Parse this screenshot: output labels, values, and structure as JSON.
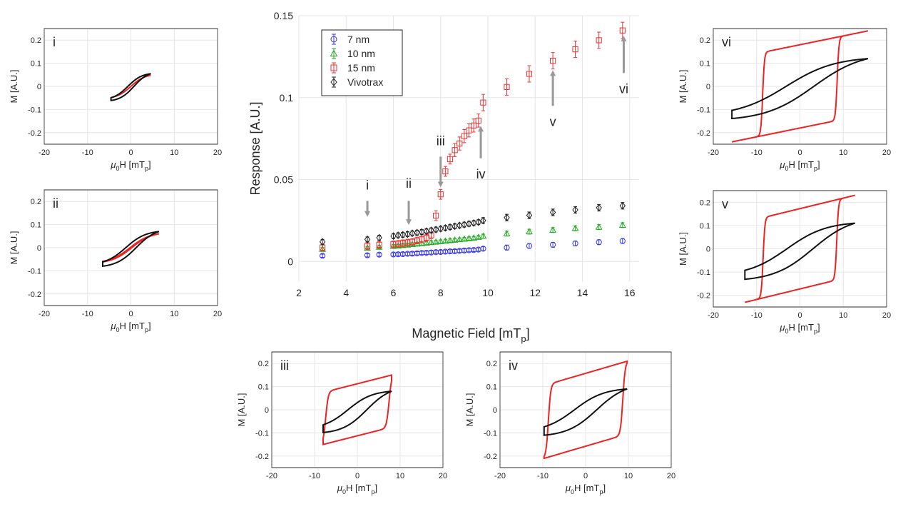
{
  "main": {
    "type": "scatter",
    "xlabel": "Magnetic Field [mT",
    "xlabel_sub": "p",
    "xlabel_end": "]",
    "ylabel": "Response [A.U.]",
    "xlim": [
      2,
      16.4
    ],
    "ylim": [
      -0.0125,
      0.15
    ],
    "xticks": [
      2,
      4,
      6,
      8,
      10,
      12,
      14,
      16
    ],
    "yticks": [
      0,
      0.05,
      0.1,
      0.15
    ],
    "ytick_labels": [
      "0",
      "0.05",
      "0.1",
      "0.15"
    ],
    "legend": {
      "position": "top-left",
      "entries": [
        "7 nm",
        "10 nm",
        "15 nm",
        "Vivotrax"
      ]
    },
    "series": [
      {
        "name": "7 nm",
        "color": "#3333ee",
        "marker": "circle",
        "x": [
          3.0,
          4.9,
          5.4,
          6.0,
          6.2,
          6.4,
          6.6,
          6.8,
          7.0,
          7.2,
          7.4,
          7.6,
          7.8,
          8.0,
          8.2,
          8.4,
          8.6,
          8.8,
          9.0,
          9.2,
          9.4,
          9.6,
          9.8,
          10.8,
          11.75,
          12.75,
          13.7,
          14.7,
          15.7
        ],
        "y": [
          0.0035,
          0.0038,
          0.0042,
          0.0043,
          0.0044,
          0.0045,
          0.0047,
          0.0048,
          0.005,
          0.0052,
          0.0053,
          0.0055,
          0.0057,
          0.0058,
          0.006,
          0.0062,
          0.0063,
          0.0065,
          0.0067,
          0.0069,
          0.007,
          0.0073,
          0.0078,
          0.0085,
          0.0095,
          0.0102,
          0.011,
          0.0118,
          0.0125
        ],
        "err": [
          0.001,
          0.001,
          0.001,
          0.001,
          0.001,
          0.001,
          0.001,
          0.001,
          0.001,
          0.001,
          0.001,
          0.001,
          0.001,
          0.001,
          0.001,
          0.001,
          0.001,
          0.001,
          0.001,
          0.001,
          0.001,
          0.001,
          0.0012,
          0.0015,
          0.0015,
          0.0015,
          0.0015,
          0.0015,
          0.0015
        ]
      },
      {
        "name": "10 nm",
        "color": "#22aa22",
        "marker": "triangle",
        "x": [
          3.0,
          4.9,
          5.4,
          6.0,
          6.2,
          6.4,
          6.6,
          6.8,
          7.0,
          7.2,
          7.4,
          7.6,
          7.8,
          8.0,
          8.2,
          8.4,
          8.6,
          8.8,
          9.0,
          9.2,
          9.4,
          9.6,
          9.8,
          10.8,
          11.75,
          12.75,
          13.7,
          14.7,
          15.7
        ],
        "y": [
          0.0075,
          0.0082,
          0.0088,
          0.0093,
          0.0095,
          0.0098,
          0.0101,
          0.0104,
          0.0107,
          0.011,
          0.0113,
          0.0116,
          0.0119,
          0.0122,
          0.0125,
          0.0128,
          0.0131,
          0.0134,
          0.0137,
          0.014,
          0.0143,
          0.0148,
          0.0155,
          0.017,
          0.0182,
          0.0192,
          0.0202,
          0.021,
          0.0222
        ],
        "err": [
          0.001,
          0.001,
          0.001,
          0.001,
          0.001,
          0.001,
          0.001,
          0.001,
          0.001,
          0.001,
          0.001,
          0.001,
          0.001,
          0.001,
          0.001,
          0.001,
          0.001,
          0.001,
          0.001,
          0.001,
          0.001,
          0.001,
          0.0012,
          0.0015,
          0.0015,
          0.0015,
          0.0015,
          0.0015,
          0.0015
        ]
      },
      {
        "name": "15 nm",
        "color": "#ee3333",
        "marker": "square",
        "x": [
          3.0,
          4.9,
          5.4,
          6.0,
          6.2,
          6.4,
          6.6,
          6.8,
          7.0,
          7.2,
          7.4,
          7.6,
          7.8,
          8.0,
          8.2,
          8.4,
          8.6,
          8.8,
          9.0,
          9.2,
          9.4,
          9.6,
          9.8,
          10.8,
          11.75,
          12.75,
          13.7,
          14.7,
          15.7
        ],
        "y": [
          0.0085,
          0.0095,
          0.0102,
          0.0105,
          0.0108,
          0.0112,
          0.0116,
          0.012,
          0.0128,
          0.0135,
          0.0145,
          0.016,
          0.028,
          0.041,
          0.055,
          0.0625,
          0.068,
          0.072,
          0.0765,
          0.08,
          0.083,
          0.086,
          0.097,
          0.1065,
          0.1145,
          0.1225,
          0.1295,
          0.135,
          0.141
        ],
        "err": [
          0.002,
          0.002,
          0.002,
          0.002,
          0.002,
          0.002,
          0.002,
          0.002,
          0.002,
          0.002,
          0.002,
          0.002,
          0.003,
          0.003,
          0.003,
          0.003,
          0.004,
          0.004,
          0.004,
          0.004,
          0.004,
          0.004,
          0.005,
          0.005,
          0.005,
          0.005,
          0.005,
          0.005,
          0.005
        ]
      },
      {
        "name": "Vivotrax",
        "color": "#222222",
        "marker": "diamond",
        "x": [
          3.0,
          4.9,
          5.4,
          6.0,
          6.2,
          6.4,
          6.6,
          6.8,
          7.0,
          7.2,
          7.4,
          7.6,
          7.8,
          8.0,
          8.2,
          8.4,
          8.6,
          8.8,
          9.0,
          9.2,
          9.4,
          9.6,
          9.8,
          10.8,
          11.75,
          12.75,
          13.7,
          14.7,
          15.7
        ],
        "y": [
          0.012,
          0.0135,
          0.0145,
          0.0155,
          0.016,
          0.0163,
          0.0167,
          0.0172,
          0.0176,
          0.018,
          0.0185,
          0.019,
          0.0195,
          0.02,
          0.0205,
          0.021,
          0.0215,
          0.022,
          0.0225,
          0.023,
          0.0235,
          0.024,
          0.025,
          0.0268,
          0.0282,
          0.03,
          0.0315,
          0.0328,
          0.034
        ],
        "err": [
          0.0015,
          0.0015,
          0.0015,
          0.0015,
          0.0015,
          0.0015,
          0.0015,
          0.0015,
          0.0015,
          0.0015,
          0.0015,
          0.0015,
          0.0015,
          0.0015,
          0.0015,
          0.0015,
          0.0015,
          0.0015,
          0.0015,
          0.0015,
          0.0015,
          0.0015,
          0.0018,
          0.002,
          0.002,
          0.002,
          0.002,
          0.002,
          0.002
        ]
      }
    ],
    "arrows": [
      {
        "label": "i",
        "x": 4.9,
        "y_tip": 0.029,
        "y_tail": 0.037,
        "label_y": 0.044,
        "label_side": "above"
      },
      {
        "label": "ii",
        "x": 6.65,
        "y_tip": 0.024,
        "y_tail": 0.037,
        "label_y": 0.045,
        "label_side": "above"
      },
      {
        "label": "iii",
        "x": 8.0,
        "y_tip": 0.047,
        "y_tail": 0.064,
        "label_y": 0.071,
        "label_side": "above"
      },
      {
        "label": "iv",
        "x": 9.7,
        "y_tip": 0.081,
        "y_tail": 0.063,
        "label_y": 0.056,
        "label_side": "below"
      },
      {
        "label": "v",
        "x": 12.75,
        "y_tip": 0.115,
        "y_tail": 0.095,
        "label_y": 0.088,
        "label_side": "below"
      },
      {
        "label": "vi",
        "x": 15.75,
        "y_tip": 0.136,
        "y_tail": 0.115,
        "label_y": 0.108,
        "label_side": "below"
      }
    ]
  },
  "hysteresis": {
    "xlabel_mu": "μ",
    "xlabel_sub0": "0",
    "xlabel_mid": "H [mT",
    "xlabel_sub": "p",
    "xlabel_end": "]",
    "ylabel": "M [A.U.]",
    "xlim": [
      -20,
      20
    ],
    "ylim": [
      -0.25,
      0.25
    ],
    "xticks": [
      -20,
      -10,
      0,
      10,
      20
    ],
    "xtick_labels": [
      "-20",
      "-10",
      "0",
      "10",
      "20"
    ],
    "yticks": [
      -0.2,
      -0.1,
      0,
      0.1,
      0.2
    ],
    "ytick_labels": [
      "-0.2",
      "-0.1",
      "0",
      "0.1",
      "0.2"
    ],
    "panels": [
      {
        "label": "i",
        "black": {
          "hmax": 4.6,
          "mmax": 0.055,
          "coercive": 0.7,
          "alpha": 4.0,
          "sat_mode": "tanh"
        },
        "red": {
          "hmax": 4.6,
          "mmax": 0.048,
          "coercive": 0.0,
          "alpha": 5.0,
          "sat_mode": "tanh"
        }
      },
      {
        "label": "ii",
        "black": {
          "hmax": 6.5,
          "mmax": 0.07,
          "coercive": 1.2,
          "alpha": 5.0,
          "sat_mode": "tanh"
        },
        "red": {
          "hmax": 6.5,
          "mmax": 0.06,
          "coercive": 0.2,
          "alpha": 6.0,
          "sat_mode": "tanh"
        }
      },
      {
        "label": "iii",
        "black": {
          "hmax": 8.0,
          "mmax": 0.08,
          "coercive": 2.2,
          "alpha": 5.5,
          "sat_mode": "tanh"
        },
        "red": {
          "hmax": 8.0,
          "mmax": 0.15,
          "coercive": 7.4,
          "alpha": 0.6,
          "sat_mode": "square"
        }
      },
      {
        "label": "iv",
        "black": {
          "hmax": 9.7,
          "mmax": 0.09,
          "coercive": 2.6,
          "alpha": 6.0,
          "sat_mode": "tanh"
        },
        "red": {
          "hmax": 9.7,
          "mmax": 0.21,
          "coercive": 8.7,
          "alpha": 0.55,
          "sat_mode": "square"
        }
      },
      {
        "label": "v",
        "black": {
          "hmax": 12.7,
          "mmax": 0.11,
          "coercive": 3.0,
          "alpha": 7.0,
          "sat_mode": "tanh"
        },
        "red": {
          "hmax": 12.7,
          "mmax": 0.23,
          "coercive": 8.5,
          "alpha": 0.4,
          "sat_mode": "square"
        }
      },
      {
        "label": "vi",
        "black": {
          "hmax": 15.7,
          "mmax": 0.12,
          "coercive": 3.2,
          "alpha": 8.0,
          "sat_mode": "tanh"
        },
        "red": {
          "hmax": 15.7,
          "mmax": 0.24,
          "coercive": 8.6,
          "alpha": 0.4,
          "sat_mode": "square"
        }
      }
    ]
  }
}
